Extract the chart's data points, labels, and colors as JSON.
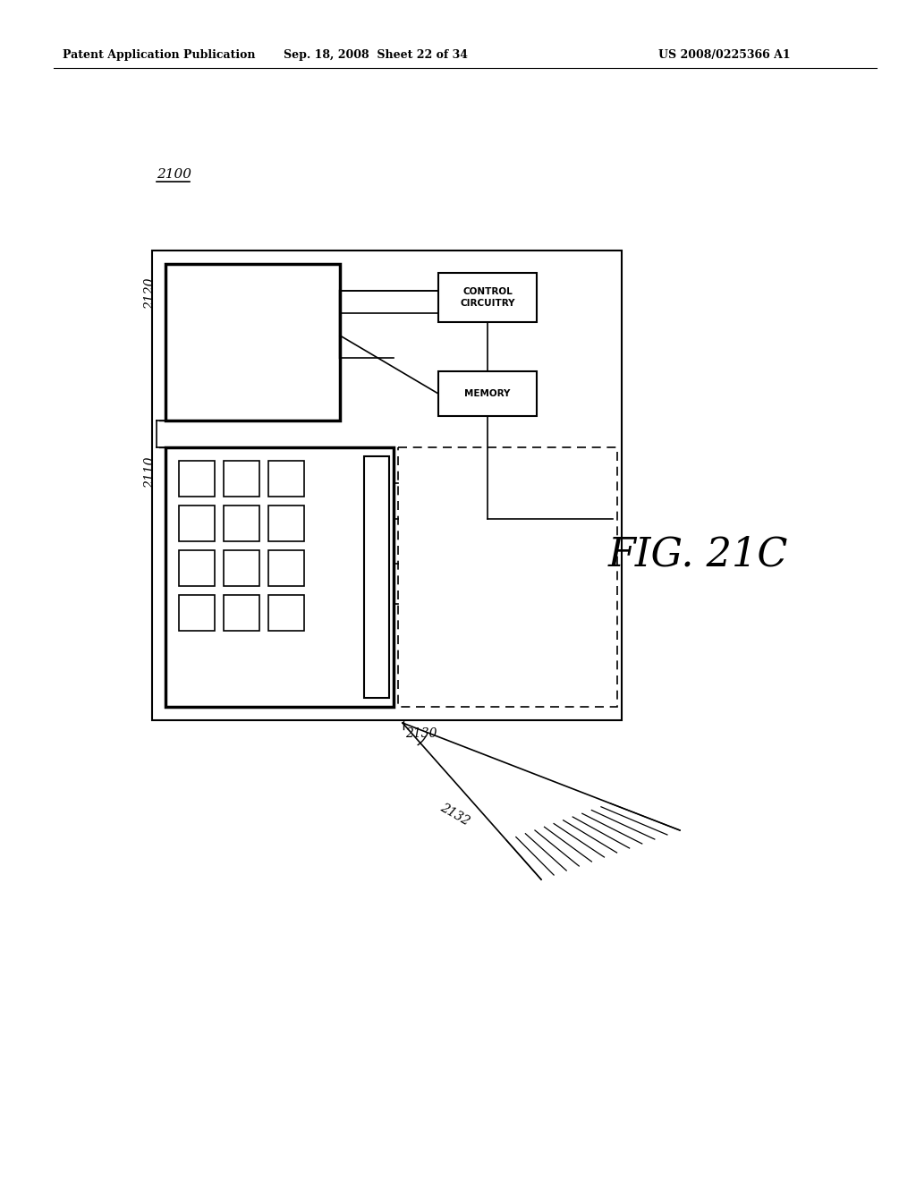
{
  "bg_color": "#ffffff",
  "header_left": "Patent Application Publication",
  "header_mid": "Sep. 18, 2008  Sheet 22 of 34",
  "header_right": "US 2008/0225366 A1",
  "fig_label": "FIG. 21C",
  "label_2100": "2100",
  "label_2110": "2110",
  "label_2120": "2120",
  "label_2130": "2130",
  "label_2132": "2132",
  "label_control": "CONTROL\nCIRCUITRY",
  "label_memory": "MEMORY"
}
